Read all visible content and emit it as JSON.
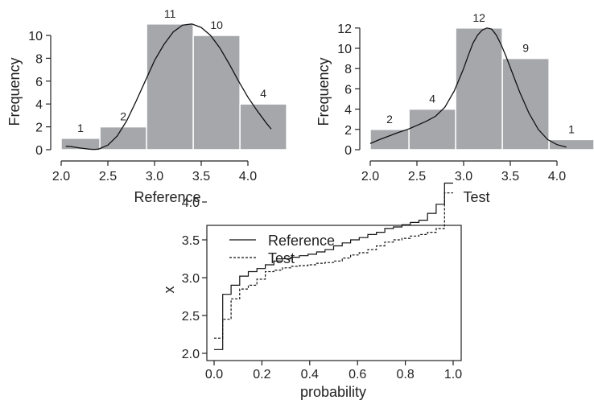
{
  "chart_data": [
    {
      "type": "bar",
      "xlabel": "Reference",
      "ylabel": "Frequency",
      "bin_edges": [
        2.0,
        2.415,
        2.915,
        3.415,
        3.915,
        4.415
      ],
      "values": [
        1,
        2,
        11,
        10,
        4
      ],
      "bar_labels": [
        "1",
        "2",
        "11",
        "10",
        "4"
      ],
      "xlim": [
        2.0,
        4.25
      ],
      "ylim": [
        0,
        11
      ],
      "xticks": [
        "2.0",
        "2.5",
        "3.0",
        "3.5",
        "4.0"
      ],
      "yticks": [
        "0",
        "2",
        "4",
        "6",
        "8",
        "10"
      ],
      "density_curve": {
        "x": [
          2.05,
          2.1,
          2.2,
          2.3,
          2.35,
          2.4,
          2.5,
          2.6,
          2.7,
          2.8,
          2.9,
          3.0,
          3.1,
          3.2,
          3.3,
          3.4,
          3.5,
          3.6,
          3.7,
          3.8,
          3.9,
          4.0,
          4.1,
          4.2,
          4.25
        ],
        "y": [
          0.3,
          0.28,
          0.15,
          0.05,
          0.02,
          0.05,
          0.4,
          1.2,
          2.5,
          4.2,
          6.0,
          7.8,
          9.2,
          10.3,
          10.9,
          11.0,
          10.7,
          10.0,
          8.9,
          7.5,
          6.0,
          4.6,
          3.4,
          2.3,
          1.8
        ]
      },
      "grid": false
    },
    {
      "type": "bar",
      "xlabel": "Test",
      "ylabel": "Frequency",
      "bin_edges": [
        2.0,
        2.415,
        2.915,
        3.415,
        3.915,
        4.415
      ],
      "values": [
        2,
        4,
        12,
        9,
        1
      ],
      "bar_labels": [
        "2",
        "4",
        "12",
        "9",
        "1"
      ],
      "xlim": [
        2.0,
        4.1
      ],
      "ylim": [
        0,
        12
      ],
      "xticks": [
        "2.0",
        "2.5",
        "3.0",
        "3.5",
        "4.0"
      ],
      "yticks": [
        "0",
        "2",
        "4",
        "6",
        "8",
        "10",
        "12"
      ],
      "density_curve": {
        "x": [
          2.0,
          2.1,
          2.2,
          2.3,
          2.4,
          2.5,
          2.6,
          2.7,
          2.8,
          2.9,
          3.0,
          3.05,
          3.1,
          3.15,
          3.2,
          3.25,
          3.3,
          3.35,
          3.4,
          3.45,
          3.5,
          3.6,
          3.7,
          3.8,
          3.9,
          4.0,
          4.1
        ],
        "y": [
          0.6,
          1.0,
          1.35,
          1.7,
          2.0,
          2.4,
          2.8,
          3.3,
          4.2,
          5.8,
          8.0,
          9.3,
          10.5,
          11.3,
          11.8,
          12.0,
          11.9,
          11.3,
          10.4,
          9.3,
          8.1,
          5.7,
          3.6,
          2.0,
          1.0,
          0.5,
          0.25
        ]
      },
      "grid": false
    },
    {
      "type": "line",
      "xlabel": "probability",
      "ylabel": "x",
      "xlim": [
        0.0,
        1.0
      ],
      "ylim": [
        2.0,
        4.25
      ],
      "xticks": [
        "0.0",
        "0.2",
        "0.4",
        "0.6",
        "0.8",
        "1.0"
      ],
      "yticks": [
        "2.0",
        "2.5",
        "3.0",
        "3.5",
        "4.0"
      ],
      "legend": {
        "position": "top-left",
        "entries": [
          "Reference",
          "Test"
        ]
      },
      "series": [
        {
          "name": "Reference",
          "step": true,
          "x": [
            0.0,
            0.036,
            0.071,
            0.107,
            0.143,
            0.179,
            0.214,
            0.25,
            0.286,
            0.321,
            0.357,
            0.393,
            0.429,
            0.464,
            0.5,
            0.536,
            0.571,
            0.607,
            0.643,
            0.679,
            0.714,
            0.75,
            0.786,
            0.821,
            0.857,
            0.893,
            0.929,
            0.964,
            1.0
          ],
          "y": [
            2.05,
            2.78,
            2.9,
            3.02,
            3.08,
            3.12,
            3.17,
            3.22,
            3.25,
            3.27,
            3.29,
            3.31,
            3.34,
            3.37,
            3.42,
            3.46,
            3.5,
            3.53,
            3.57,
            3.6,
            3.65,
            3.67,
            3.7,
            3.73,
            3.76,
            3.85,
            3.97,
            4.25,
            4.25
          ]
        },
        {
          "name": "Test",
          "step": true,
          "x": [
            0.0,
            0.036,
            0.071,
            0.107,
            0.143,
            0.179,
            0.214,
            0.25,
            0.286,
            0.321,
            0.357,
            0.393,
            0.429,
            0.464,
            0.5,
            0.536,
            0.571,
            0.607,
            0.643,
            0.679,
            0.714,
            0.75,
            0.786,
            0.821,
            0.857,
            0.893,
            0.929,
            0.964,
            1.0
          ],
          "y": [
            2.2,
            2.45,
            2.72,
            2.85,
            2.9,
            2.98,
            3.08,
            3.1,
            3.13,
            3.15,
            3.16,
            3.17,
            3.19,
            3.2,
            3.22,
            3.26,
            3.3,
            3.33,
            3.37,
            3.42,
            3.47,
            3.5,
            3.52,
            3.55,
            3.57,
            3.6,
            3.65,
            4.12,
            4.12
          ]
        }
      ],
      "grid": false
    }
  ]
}
